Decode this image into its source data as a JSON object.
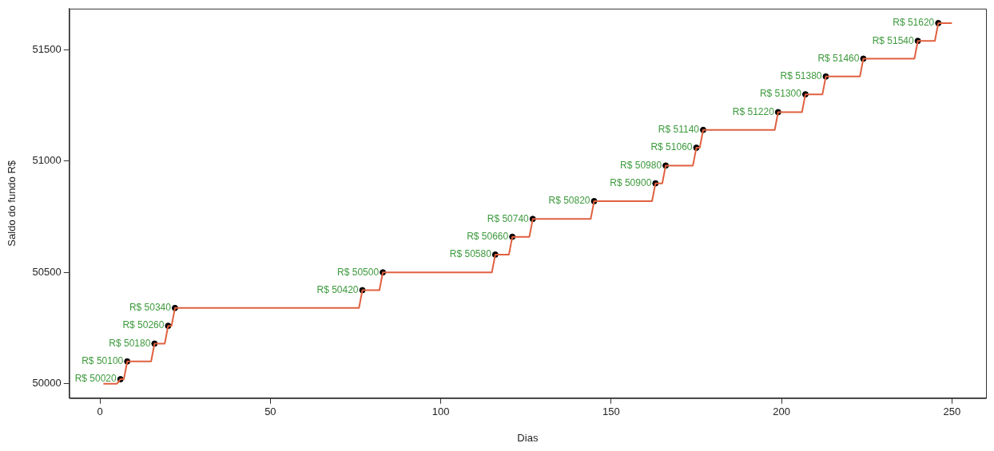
{
  "chart_data": {
    "type": "line",
    "xlabel": "Dias",
    "ylabel": "Saldo do fundo R$",
    "xlim": [
      -9,
      260
    ],
    "xticks": [
      0,
      50,
      100,
      150,
      200,
      250
    ],
    "ylim": [
      49935,
      51685
    ],
    "yticks": [
      50000,
      50500,
      51000,
      51500
    ],
    "grid": false,
    "legend": false,
    "series": [
      {
        "color": "#e0603f",
        "marker": "none",
        "line_style": "solid",
        "x": [
          1,
          5,
          6,
          7,
          8,
          15,
          16,
          19,
          20,
          21,
          22,
          76,
          77,
          82,
          83,
          115,
          116,
          120,
          121,
          126,
          127,
          144,
          145,
          162,
          163,
          165,
          166,
          174,
          175,
          176,
          177,
          198,
          199,
          206,
          207,
          212,
          213,
          223,
          224,
          239,
          240,
          245,
          246,
          250
        ],
        "values": [
          50000,
          50000,
          50020,
          50020,
          50100,
          50100,
          50180,
          50180,
          50260,
          50260,
          50340,
          50340,
          50420,
          50420,
          50500,
          50500,
          50580,
          50580,
          50660,
          50660,
          50740,
          50740,
          50820,
          50820,
          50900,
          50900,
          50980,
          50980,
          51060,
          51060,
          51140,
          51140,
          51220,
          51220,
          51300,
          51300,
          51380,
          51380,
          51460,
          51460,
          51540,
          51540,
          51620,
          51620
        ]
      },
      {
        "type": "scatter",
        "color": "#000000",
        "marker": "circle",
        "x": [
          6,
          8,
          16,
          20,
          22,
          77,
          83,
          116,
          121,
          127,
          145,
          163,
          166,
          175,
          177,
          199,
          207,
          213,
          224,
          240,
          246
        ],
        "values": [
          50020,
          50100,
          50180,
          50260,
          50340,
          50420,
          50500,
          50580,
          50660,
          50740,
          50820,
          50900,
          50980,
          51060,
          51140,
          51220,
          51300,
          51380,
          51460,
          51540,
          51620
        ],
        "value_labels": [
          "R$ 50020",
          "R$ 50100",
          "R$ 50180",
          "R$ 50260",
          "R$ 50340",
          "R$ 50420",
          "R$ 50500",
          "R$ 50580",
          "R$ 50660",
          "R$ 50740",
          "R$ 50820",
          "R$ 50900",
          "R$ 50980",
          "R$ 51060",
          "R$ 51140",
          "R$ 51220",
          "R$ 51300",
          "R$ 51380",
          "R$ 51460",
          "R$ 51540",
          "R$ 51620"
        ]
      }
    ]
  }
}
